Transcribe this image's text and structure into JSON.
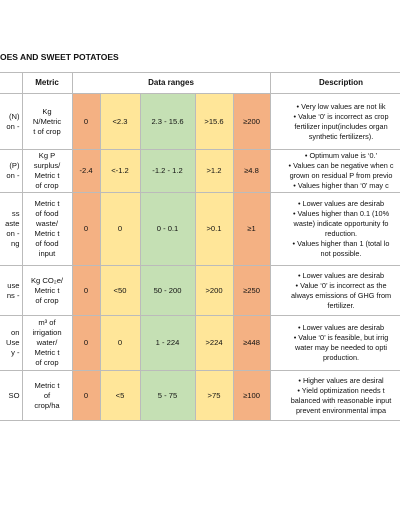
{
  "title": "OES AND SWEET POTATOES",
  "header": {
    "metric": "Metric",
    "ranges": "Data ranges",
    "description": "Description"
  },
  "rows": [
    {
      "indicator": [
        "(N)",
        "on -"
      ],
      "metric": [
        "Kg",
        "N/Metric",
        "t of crop"
      ],
      "ranges": [
        "0",
        "<2.3",
        "2.3 - 15.6",
        ">15.6",
        "≥200"
      ],
      "description": [
        [
          "• Very low values are not lik"
        ],
        [
          "• Value ‘0’ is incorrect as crop",
          "fertilizer input(includes organ",
          "synthetic fertilizers)."
        ]
      ]
    },
    {
      "indicator": [
        "(P)",
        "on -"
      ],
      "metric": [
        "Kg P",
        "surplus/",
        "Metric t",
        "of crop"
      ],
      "ranges": [
        "-2.4",
        "<-1.2",
        "-1.2 - 1.2",
        ">1.2",
        "≥4.8"
      ],
      "description": [
        [
          "• Optimum value is ‘0.’"
        ],
        [
          "• Values can be negative when c",
          "grown on residual P from previo"
        ],
        [
          "• Values higher than ‘0’ may c"
        ]
      ]
    },
    {
      "indicator": [
        "ss",
        "aste",
        "on -",
        "ng"
      ],
      "metric": [
        "Metric t",
        "of food",
        "waste/",
        "Metric t",
        "of food",
        "input"
      ],
      "ranges": [
        "0",
        "0",
        "0 - 0.1",
        ">0.1",
        "≥1"
      ],
      "description": [
        [
          "• Lower values are desirab"
        ],
        [
          "• Values higher than 0.1 (10%",
          "waste) indicate opportunity fo",
          "reduction."
        ],
        [
          "• Values higher than 1 (total lo",
          "not possible."
        ]
      ]
    },
    {
      "indicator": [
        "use",
        "ns -"
      ],
      "metric": [
        "Kg CO₂e/",
        "Metric t",
        "of crop"
      ],
      "ranges": [
        "0",
        "<50",
        "50 - 200",
        ">200",
        "≥250"
      ],
      "description": [
        [
          "• Lower values are desirab"
        ],
        [
          "• Value ‘0’ is incorrect as the",
          "always emissions of GHG from",
          "fertilizer."
        ]
      ]
    },
    {
      "indicator": [
        "on",
        "Use",
        "y -"
      ],
      "metric": [
        "m³ of",
        "irrigation",
        "water/",
        "Metric t",
        "of crop"
      ],
      "ranges": [
        "0",
        "0",
        "1 - 224",
        ">224",
        "≥448"
      ],
      "description": [
        [
          "• Lower values are desirab"
        ],
        [
          "• Value ‘0’ is feasible, but irrig",
          "water may be needed to opti",
          "production."
        ]
      ]
    },
    {
      "indicator": [
        "SO"
      ],
      "metric": [
        "Metric t",
        "of",
        "crop/ha"
      ],
      "ranges": [
        "0",
        "<5",
        "5 - 75",
        ">75",
        "≥100"
      ],
      "description": [
        [
          "• Higher values are desiral"
        ],
        [
          "• Yield optimization needs t",
          "balanced with reasonable input",
          "prevent environmental impa"
        ]
      ]
    }
  ]
}
